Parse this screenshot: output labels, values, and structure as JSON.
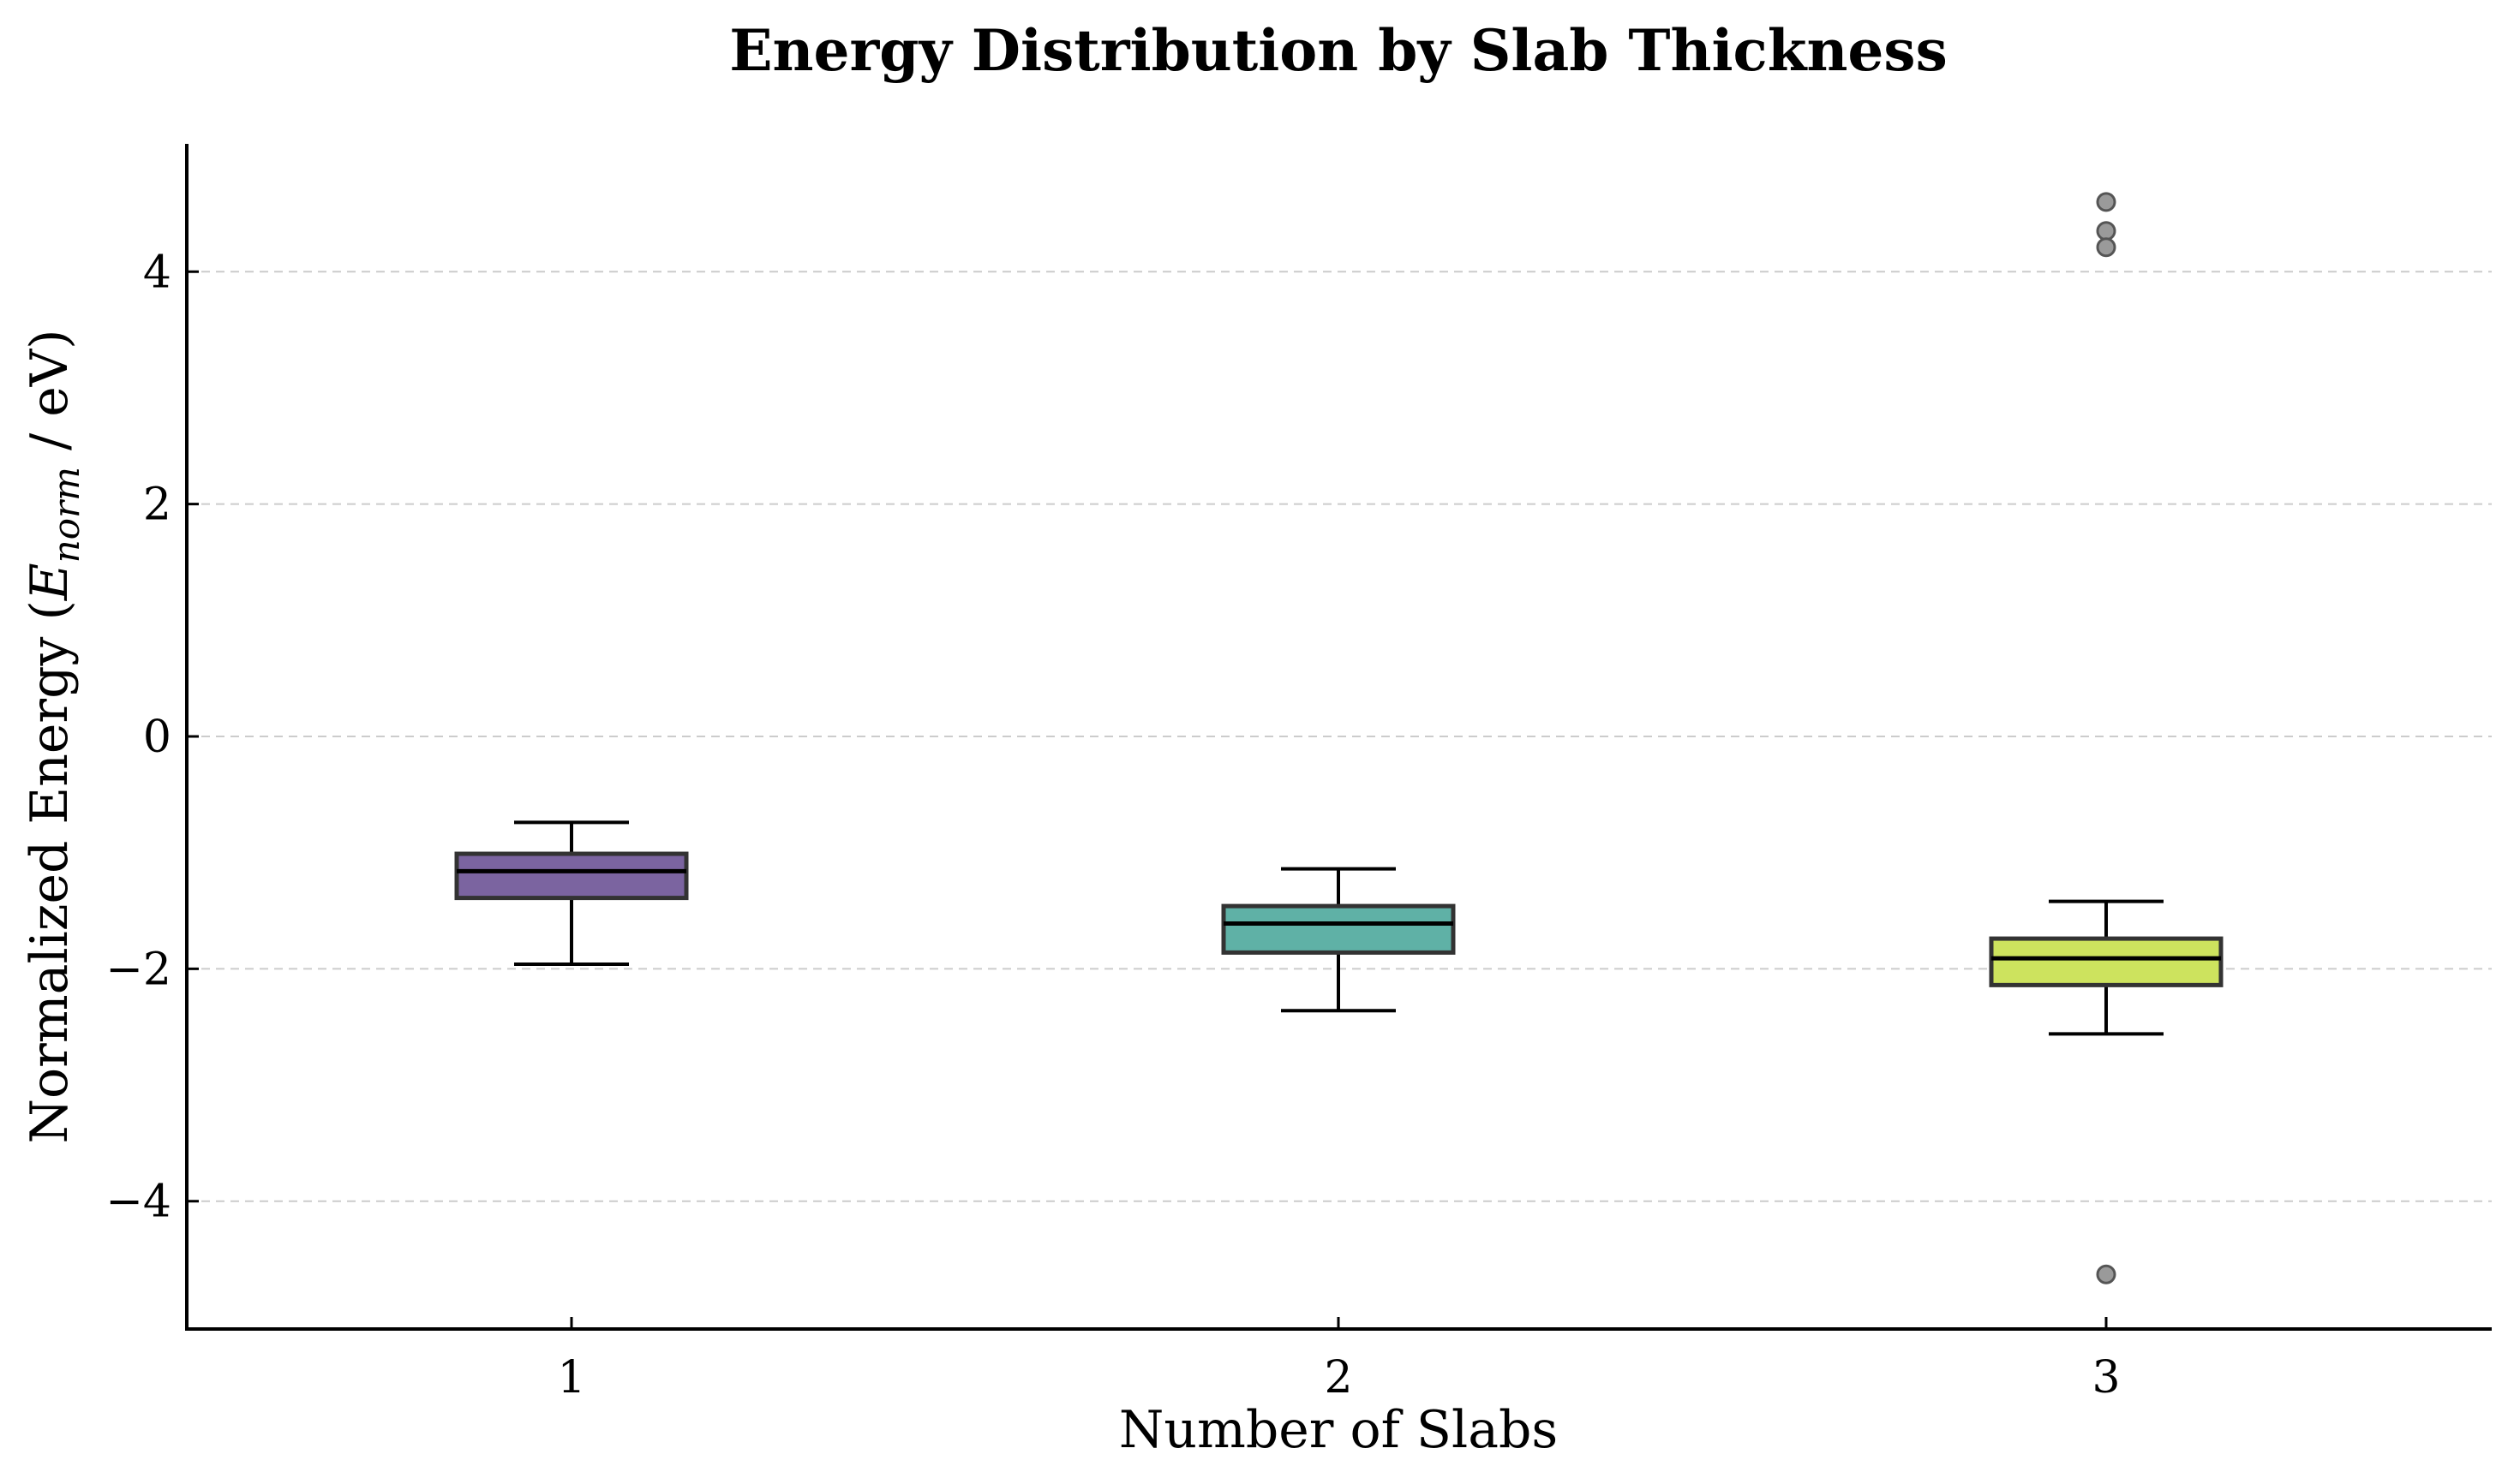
{
  "chart_data": {
    "type": "box",
    "title": "Energy Distribution by Slab Thickness",
    "xlabel": "Number of Slabs",
    "ylabel": {
      "prefix": "Normalized Energy (",
      "symbol": "E",
      "subscript": "norm",
      "suffix": " / eV)"
    },
    "ylim": [
      -5.1,
      5.1
    ],
    "y_ticks": [
      4,
      2,
      0,
      -2,
      -4
    ],
    "y_tick_labels": [
      "4",
      "2",
      "0",
      "−2",
      "−4"
    ],
    "grid": "y-dashed",
    "categories": [
      "1",
      "2",
      "3"
    ],
    "boxes": [
      {
        "category": "1",
        "whisker_low": -1.96,
        "q1": -1.39,
        "median": -1.16,
        "q3": -1.01,
        "whisker_high": -0.74,
        "outliers": [],
        "color": "#7b64a0"
      },
      {
        "category": "2",
        "whisker_low": -2.36,
        "q1": -1.86,
        "median": -1.61,
        "q3": -1.46,
        "whisker_high": -1.14,
        "outliers": [],
        "color": "#5fb1a6"
      },
      {
        "category": "3",
        "whisker_low": -2.56,
        "q1": -2.14,
        "median": -1.91,
        "q3": -1.74,
        "whisker_high": -1.42,
        "outliers": [
          4.6,
          4.35,
          4.21,
          -4.63
        ],
        "color": "#cde35e"
      }
    ],
    "colors": {
      "box_edge": "#333333",
      "median": "#000000",
      "whisker": "#000000",
      "grid": "#cccccc",
      "outlier_fill": "#9a9a9a",
      "outlier_edge": "#555555"
    }
  }
}
